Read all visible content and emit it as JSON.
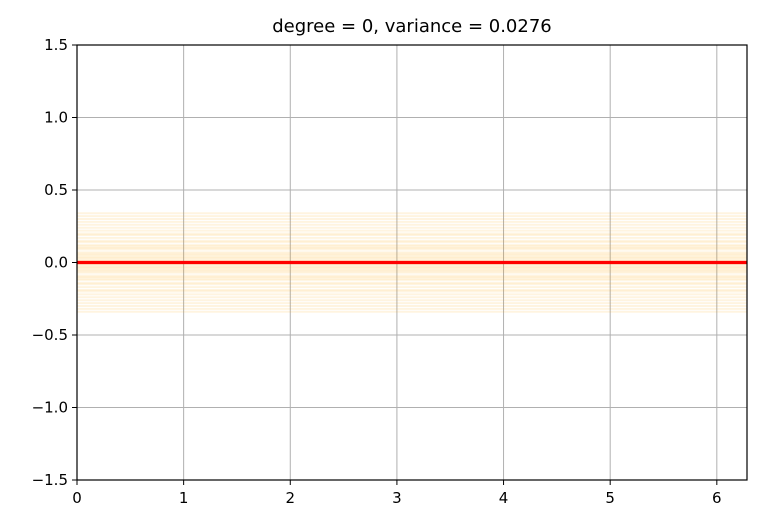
{
  "chart_data": {
    "type": "line",
    "title": "degree = 0, variance = 0.0276",
    "xlabel": "",
    "ylabel": "",
    "xlim": [
      0,
      6.283
    ],
    "ylim": [
      -1.5,
      1.5
    ],
    "x_ticks": [
      0,
      1,
      2,
      3,
      4,
      5,
      6
    ],
    "x_tick_labels": [
      "0",
      "1",
      "2",
      "3",
      "4",
      "5",
      "6"
    ],
    "y_ticks": [
      1.5,
      1.0,
      0.5,
      0.0,
      -0.5,
      -1.0,
      -1.5
    ],
    "y_tick_labels": [
      "1.5",
      "1.0",
      "0.5",
      "0.0",
      "−0.5",
      "−1.0",
      "−1.5"
    ],
    "grid": true,
    "legend": "none",
    "series": [
      {
        "role": "fitted-lines",
        "color": "#ffa500",
        "opacity": 0.12,
        "values": [
          0.34,
          0.32,
          0.3,
          0.28,
          0.26,
          0.24,
          0.22,
          0.2,
          0.19,
          0.17,
          0.15,
          0.14,
          0.12,
          0.11,
          0.1,
          0.09,
          0.07,
          0.06,
          0.05,
          0.04,
          0.03,
          0.02,
          0.01,
          -0.01,
          -0.02,
          -0.03,
          -0.04,
          -0.05,
          -0.06,
          -0.07,
          -0.09,
          -0.1,
          -0.11,
          -0.12,
          -0.14,
          -0.15,
          -0.17,
          -0.19,
          -0.2,
          -0.22,
          -0.24,
          -0.26,
          -0.28,
          -0.3,
          -0.32,
          -0.34
        ]
      },
      {
        "role": "mean-line",
        "color": "#ff0000",
        "values": [
          0.0
        ]
      }
    ]
  }
}
